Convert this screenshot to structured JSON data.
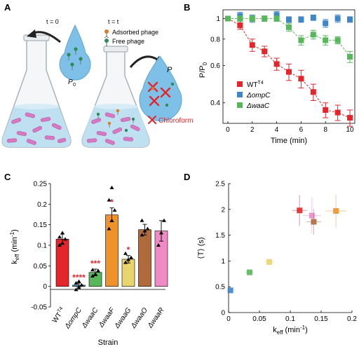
{
  "panels": {
    "A": {
      "label": "A",
      "t0_label": "t = 0",
      "tt_label": "t = t",
      "legend_adsorbed": "Adsorbed phage",
      "legend_free": "Free phage",
      "p0_label": "P",
      "p0_sub": "0",
      "p_label": "P",
      "chloroform_label": "Chloroform",
      "colors": {
        "flask_liquid": "#bfe0f0",
        "bacteria": "#d779c2",
        "drop": "#7fc0e8",
        "chloroform": "#e0262b",
        "phage_adsorbed": "#d9792a",
        "phage_free": "#2e8a57"
      }
    },
    "B": {
      "label": "B",
      "ylabel": "P/P",
      "ylabel_sub": "0",
      "xlabel": "Time (min)",
      "legend": [
        {
          "name": "WT",
          "sup": "T4",
          "color": "#e4252b"
        },
        {
          "name": "ΔompC",
          "color": "#3e86c8"
        },
        {
          "name": "ΔwaaC",
          "color": "#56b85a"
        }
      ]
    },
    "C": {
      "label": "C",
      "ylabel": "k",
      "ylabel_sub": "eff",
      "ylabel_unit": " (min",
      "ylabel_unit_sup": "-1",
      "ylabel_unit_end": ")",
      "xlabel": "Strain"
    },
    "D": {
      "label": "D",
      "ylabel": "⟨T⟩ (s)",
      "xlabel": "k",
      "xlabel_sub": "eff",
      "xlabel_unit": " (min",
      "xlabel_unit_sup": "-1",
      "xlabel_unit_end": ")"
    }
  },
  "chart_data": [
    {
      "panel": "B",
      "type": "scatter",
      "x_ticks": [
        0,
        2,
        4,
        6,
        8,
        10
      ],
      "y_ticks": [
        0.4,
        0.6,
        0.8,
        1
      ],
      "y_scale": "log",
      "xlim": [
        -0.4,
        10.4
      ],
      "ylim": [
        0.32,
        1.1
      ],
      "series": [
        {
          "name": "WT",
          "color": "#e4252b",
          "line": true,
          "x": [
            0,
            1,
            2,
            3,
            4,
            5,
            6,
            7,
            8,
            9,
            10
          ],
          "y": [
            1.0,
            0.93,
            0.75,
            0.7,
            0.61,
            0.56,
            0.52,
            0.45,
            0.37,
            0.36,
            0.34
          ],
          "err": [
            0.02,
            0.04,
            0.05,
            0.04,
            0.04,
            0.05,
            0.05,
            0.04,
            0.03,
            0.03,
            0.03
          ]
        },
        {
          "name": "ΔompC",
          "color": "#3e86c8",
          "line": false,
          "x": [
            1,
            2,
            4,
            5,
            6,
            7,
            8,
            9,
            10
          ],
          "y": [
            1.03,
            1.0,
            1.04,
            0.99,
            0.99,
            1.01,
            0.95,
            1.0,
            0.99
          ],
          "err": [
            0.04,
            0.04,
            0.04,
            0.03,
            0.03,
            0.03,
            0.04,
            0.04,
            0.03
          ]
        },
        {
          "name": "ΔwaaC",
          "color": "#56b85a",
          "line": true,
          "x": [
            0,
            1,
            2,
            3,
            4,
            5,
            6,
            7,
            8,
            9,
            10
          ],
          "y": [
            1.0,
            1.0,
            1.0,
            1.0,
            1.0,
            0.91,
            0.79,
            0.84,
            0.79,
            0.79,
            0.66
          ],
          "err": [
            0.02,
            0.03,
            0.03,
            0.03,
            0.03,
            0.04,
            0.04,
            0.04,
            0.04,
            0.03,
            0.04
          ]
        }
      ]
    },
    {
      "panel": "C",
      "type": "bar",
      "categories": [
        "WT",
        "ΔompC",
        "ΔwaaC",
        "ΔwaaF",
        "ΔwaaG",
        "ΔwaaO",
        "ΔwaaR"
      ],
      "category_sup": [
        "T4",
        "",
        "",
        "",
        "",
        "",
        ""
      ],
      "values": [
        0.115,
        0.003,
        0.034,
        0.174,
        0.066,
        0.138,
        0.135
      ],
      "errors": [
        0.012,
        0.005,
        0.008,
        0.017,
        0.009,
        0.013,
        0.025
      ],
      "colors": [
        "#e4252b",
        "#3e86c8",
        "#56b85a",
        "#f0922a",
        "#e9d46e",
        "#b16a3c",
        "#ef8ac4"
      ],
      "significance": [
        "",
        "****",
        "***",
        "*",
        "*",
        "",
        ""
      ],
      "points": [
        [
          0.1,
          0.105,
          0.115,
          0.12,
          0.13
        ],
        [
          -0.008,
          -0.003,
          0.003,
          0.008,
          0.012
        ],
        [
          0.025,
          0.03,
          0.038,
          0.04
        ],
        [
          0.14,
          0.16,
          0.185,
          0.21,
          0.24
        ],
        [
          0.058,
          0.065,
          0.07,
          0.08
        ],
        [
          0.125,
          0.135,
          0.14,
          0.16
        ],
        [
          0.1,
          0.13,
          0.16
        ]
      ],
      "y_ticks": [
        -0.05,
        0,
        0.05,
        0.1,
        0.15,
        0.2,
        0.25
      ],
      "ylim": [
        -0.05,
        0.25
      ]
    },
    {
      "panel": "D",
      "type": "scatter",
      "x_ticks": [
        0,
        0.05,
        0.1,
        0.15,
        0.2
      ],
      "y_ticks": [
        0,
        0.5,
        1,
        1.5,
        2,
        2.5
      ],
      "xlim": [
        0,
        0.2
      ],
      "ylim": [
        0,
        2.5
      ],
      "points": [
        {
          "x": 0.003,
          "y": 0.43,
          "xerr": 0.004,
          "yerr": 0.05,
          "color": "#3e86c8"
        },
        {
          "x": 0.034,
          "y": 0.78,
          "xerr": 0.006,
          "yerr": 0.05,
          "color": "#56b85a"
        },
        {
          "x": 0.066,
          "y": 0.98,
          "xerr": 0.008,
          "yerr": 0.07,
          "color": "#e9d46e"
        },
        {
          "x": 0.115,
          "y": 1.98,
          "xerr": 0.012,
          "yerr": 0.3,
          "color": "#e4252b"
        },
        {
          "x": 0.135,
          "y": 1.88,
          "xerr": 0.015,
          "yerr": 0.35,
          "color": "#ef8ac4"
        },
        {
          "x": 0.138,
          "y": 1.76,
          "xerr": 0.012,
          "yerr": 0.25,
          "color": "#b16a3c"
        },
        {
          "x": 0.174,
          "y": 1.97,
          "xerr": 0.017,
          "yerr": 0.32,
          "color": "#f0922a"
        }
      ]
    }
  ]
}
